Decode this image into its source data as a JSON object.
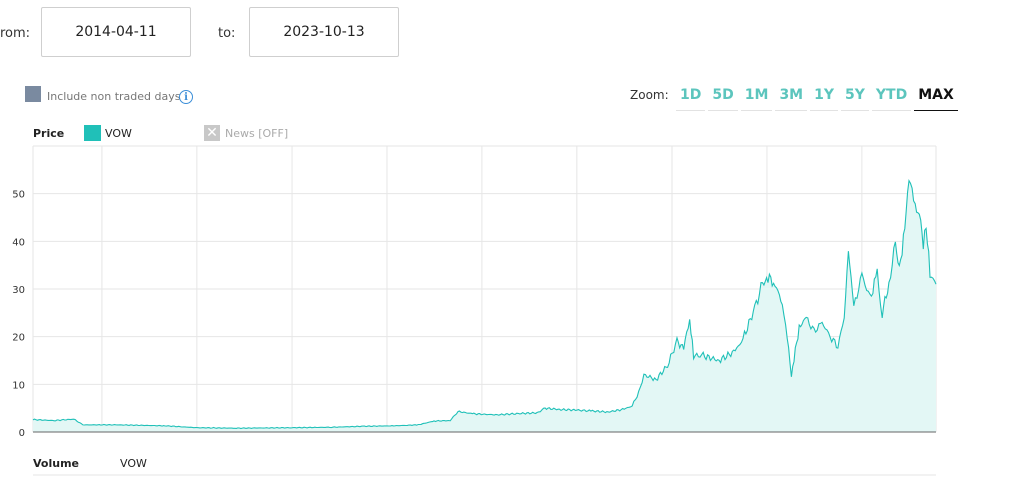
{
  "range": {
    "from_label": "rom:",
    "from_value": "2014-04-11",
    "to_label": "to:",
    "to_value": "2023-10-13"
  },
  "options": {
    "non_traded_label": "Include non traded days",
    "info_icon": "info-icon",
    "checkbox_color": "#7a8aa0"
  },
  "zoom": {
    "label": "Zoom:",
    "buttons": [
      "1D",
      "5D",
      "1M",
      "3M",
      "1Y",
      "5Y",
      "YTD",
      "MAX"
    ],
    "active": "MAX",
    "accent": "#5cc5bd"
  },
  "legend": {
    "price_label": "Price",
    "series_name": "VOW",
    "series_color": "#20c0b8",
    "news_label": "News [OFF]",
    "news_icon": "close-icon"
  },
  "volume": {
    "title": "Volume",
    "series_name": "VOW"
  },
  "chart_data": {
    "type": "area",
    "title": "",
    "xlabel": "",
    "ylabel": "",
    "x_start": "2014-04-11",
    "x_end": "2023-10-13",
    "ylim": [
      0,
      60
    ],
    "yticks": [
      0,
      10,
      20,
      30,
      40,
      50
    ],
    "grid": true,
    "legend_position": "top-left",
    "series": [
      {
        "name": "VOW",
        "color": "#20c0b8",
        "fill": "#e3f7f5",
        "points": [
          [
            "2014-04-11",
            2.6
          ],
          [
            "2014-07-01",
            2.4
          ],
          [
            "2014-09-15",
            2.7
          ],
          [
            "2014-10-20",
            1.5
          ],
          [
            "2015-03-01",
            1.5
          ],
          [
            "2015-09-01",
            1.3
          ],
          [
            "2016-01-01",
            0.9
          ],
          [
            "2016-06-01",
            0.8
          ],
          [
            "2017-01-01",
            0.9
          ],
          [
            "2017-06-01",
            1.0
          ],
          [
            "2017-10-01",
            1.2
          ],
          [
            "2018-02-01",
            1.3
          ],
          [
            "2018-05-01",
            1.5
          ],
          [
            "2018-07-01",
            2.3
          ],
          [
            "2018-09-01",
            2.4
          ],
          [
            "2018-10-01",
            4.3
          ],
          [
            "2018-12-01",
            3.8
          ],
          [
            "2019-03-01",
            3.6
          ],
          [
            "2019-06-01",
            3.9
          ],
          [
            "2019-08-01",
            4.0
          ],
          [
            "2019-09-01",
            5.0
          ],
          [
            "2019-11-01",
            4.7
          ],
          [
            "2020-01-01",
            4.6
          ],
          [
            "2020-03-01",
            4.4
          ],
          [
            "2020-05-01",
            4.2
          ],
          [
            "2020-07-01",
            4.8
          ],
          [
            "2020-08-01",
            5.5
          ],
          [
            "2020-09-01",
            9.0
          ],
          [
            "2020-09-15",
            12.0
          ],
          [
            "2020-11-01",
            11.0
          ],
          [
            "2020-12-15",
            14.0
          ],
          [
            "2021-01-20",
            19.0
          ],
          [
            "2021-02-15",
            17.5
          ],
          [
            "2021-03-10",
            24.0
          ],
          [
            "2021-03-25",
            16.0
          ],
          [
            "2021-05-01",
            16.0
          ],
          [
            "2021-07-01",
            15.0
          ],
          [
            "2021-09-01",
            17.0
          ],
          [
            "2021-10-01",
            19.5
          ],
          [
            "2021-11-15",
            26.0
          ],
          [
            "2021-12-15",
            31.0
          ],
          [
            "2022-01-05",
            32.5
          ],
          [
            "2022-02-01",
            31.0
          ],
          [
            "2022-03-01",
            27.0
          ],
          [
            "2022-03-20",
            20.0
          ],
          [
            "2022-04-05",
            11.5
          ],
          [
            "2022-04-20",
            17.0
          ],
          [
            "2022-05-05",
            22.0
          ],
          [
            "2022-06-01",
            24.0
          ],
          [
            "2022-07-01",
            21.0
          ],
          [
            "2022-08-01",
            23.0
          ],
          [
            "2022-09-01",
            20.0
          ],
          [
            "2022-10-01",
            18.0
          ],
          [
            "2022-10-25",
            24.0
          ],
          [
            "2022-11-10",
            38.5
          ],
          [
            "2022-12-01",
            26.0
          ],
          [
            "2023-01-01",
            33.0
          ],
          [
            "2023-02-01",
            28.0
          ],
          [
            "2023-03-01",
            33.0
          ],
          [
            "2023-03-20",
            25.0
          ],
          [
            "2023-04-15",
            31.0
          ],
          [
            "2023-05-10",
            39.5
          ],
          [
            "2023-05-25",
            34.0
          ],
          [
            "2023-06-15",
            43.0
          ],
          [
            "2023-07-01",
            53.0
          ],
          [
            "2023-07-25",
            48.0
          ],
          [
            "2023-08-15",
            43.5
          ],
          [
            "2023-08-25",
            40.0
          ],
          [
            "2023-09-05",
            44.0
          ],
          [
            "2023-09-20",
            33.0
          ],
          [
            "2023-10-13",
            31.0
          ]
        ]
      }
    ]
  }
}
